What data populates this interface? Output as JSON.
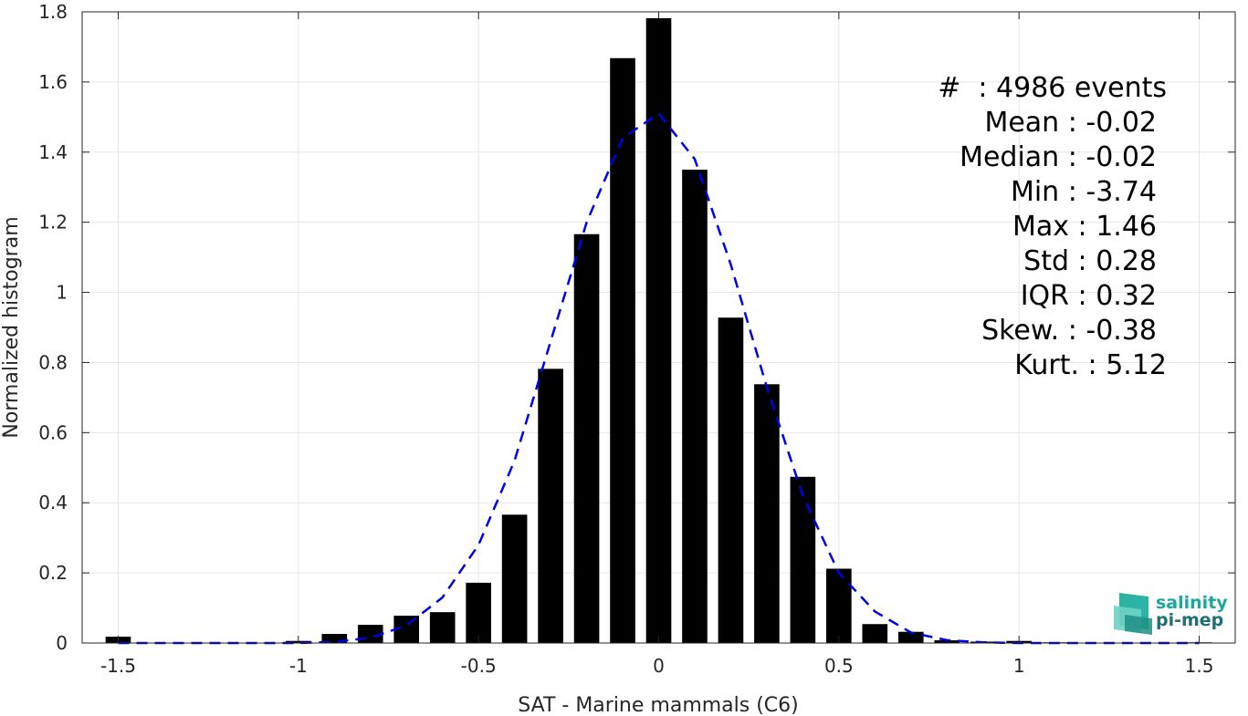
{
  "chart_data": {
    "type": "bar",
    "xlabel": "SAT - Marine mammals (C6)",
    "ylabel": "Normalized histogram",
    "xlim": [
      -1.6,
      1.6
    ],
    "ylim": [
      0,
      1.8
    ],
    "grid": true,
    "xticks": [
      -1.5,
      -1,
      -0.5,
      0,
      0.5,
      1,
      1.5
    ],
    "xtick_labels": [
      "-1.5",
      "-1",
      "-0.5",
      "0",
      "0.5",
      "1",
      "1.5"
    ],
    "yticks": [
      0,
      0.2,
      0.4,
      0.6,
      0.8,
      1,
      1.2,
      1.4,
      1.6,
      1.8
    ],
    "ytick_labels": [
      "0",
      "0.2",
      "0.4",
      "0.6",
      "0.8",
      "1",
      "1.2",
      "1.4",
      "1.6",
      "1.8"
    ],
    "bin_width": 0.1,
    "bar_color": "#000000",
    "bars": [
      {
        "x": -1.5,
        "y": 0.018
      },
      {
        "x": -1.4,
        "y": 0.0
      },
      {
        "x": -1.3,
        "y": 0.0
      },
      {
        "x": -1.2,
        "y": 0.0
      },
      {
        "x": -1.1,
        "y": 0.0
      },
      {
        "x": -1.0,
        "y": 0.006
      },
      {
        "x": -0.9,
        "y": 0.026
      },
      {
        "x": -0.8,
        "y": 0.052
      },
      {
        "x": -0.7,
        "y": 0.078
      },
      {
        "x": -0.6,
        "y": 0.088
      },
      {
        "x": -0.5,
        "y": 0.172
      },
      {
        "x": -0.4,
        "y": 0.366
      },
      {
        "x": -0.3,
        "y": 0.782
      },
      {
        "x": -0.2,
        "y": 1.166
      },
      {
        "x": -0.1,
        "y": 1.668
      },
      {
        "x": 0.0,
        "y": 1.782
      },
      {
        "x": 0.1,
        "y": 1.35
      },
      {
        "x": 0.2,
        "y": 0.928
      },
      {
        "x": 0.3,
        "y": 0.738
      },
      {
        "x": 0.4,
        "y": 0.474
      },
      {
        "x": 0.5,
        "y": 0.212
      },
      {
        "x": 0.6,
        "y": 0.054
      },
      {
        "x": 0.7,
        "y": 0.032
      },
      {
        "x": 0.8,
        "y": 0.008
      },
      {
        "x": 0.9,
        "y": 0.004
      },
      {
        "x": 1.0,
        "y": 0.006
      },
      {
        "x": 1.1,
        "y": 0.002
      },
      {
        "x": 1.2,
        "y": 0.001
      },
      {
        "x": 1.3,
        "y": 0.001
      },
      {
        "x": 1.4,
        "y": 0.001
      },
      {
        "x": 1.5,
        "y": 0.002
      }
    ],
    "fit_curve": {
      "style": "dashed",
      "color": "#0000e6",
      "x": [
        -1.5,
        -1.4,
        -1.3,
        -1.2,
        -1.1,
        -1.0,
        -0.9,
        -0.8,
        -0.7,
        -0.6,
        -0.5,
        -0.4,
        -0.3,
        -0.2,
        -0.1,
        0.0,
        0.1,
        0.2,
        0.3,
        0.4,
        0.5,
        0.6,
        0.7,
        0.8,
        0.9,
        1.0,
        1.1,
        1.2,
        1.3,
        1.4,
        1.5
      ],
      "y": [
        0.0,
        0.0,
        0.0,
        0.0,
        0.0,
        0.0,
        0.003,
        0.015,
        0.05,
        0.13,
        0.28,
        0.52,
        0.86,
        1.2,
        1.44,
        1.51,
        1.38,
        1.08,
        0.73,
        0.42,
        0.2,
        0.09,
        0.03,
        0.008,
        0.002,
        0.0,
        0.0,
        0.0,
        0.0,
        0.0,
        0.0
      ]
    }
  },
  "stats": {
    "lines": [
      "#  : 4986 events",
      "Mean : -0.02",
      "Median : -0.02",
      "Min : -3.74",
      "Max : 1.46",
      "Std : 0.28",
      "IQR : 0.32",
      "Skew. : -0.38",
      "Kurt. : 5.12"
    ]
  },
  "logo": {
    "line1": "salinity",
    "line2": "pi-mep",
    "color1": "#1aa89a",
    "color2": "#1f6f73"
  }
}
